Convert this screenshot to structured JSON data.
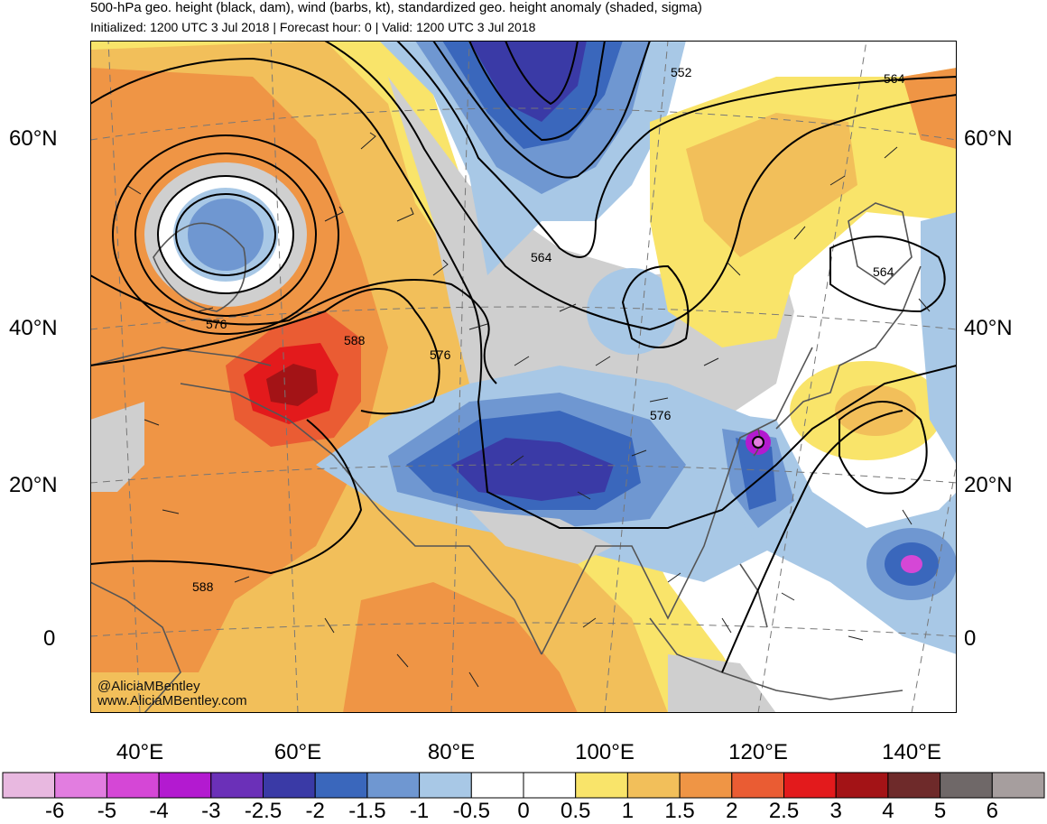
{
  "title": "500-hPa geo. height (black, dam), wind (barbs, kt), standardized geo. height anomaly (shaded, sigma)",
  "subtitle": "Initialized: 1200 UTC 3 Jul 2018 | Forecast hour: 0 | Valid: 1200 UTC 3 Jul 2018",
  "lat_labels": [
    "60°N",
    "40°N",
    "20°N",
    "0"
  ],
  "lon_labels": [
    "40°E",
    "60°E",
    "80°E",
    "100°E",
    "120°E",
    "140°E"
  ],
  "contour_labels": [
    "552",
    "564",
    "564",
    "564",
    "576",
    "576",
    "576",
    "588",
    "588"
  ],
  "credit": {
    "handle": "@AliciaMBentley",
    "url": "www.AliciaMBentley.com"
  },
  "colorbar": {
    "labels": [
      "-6",
      "-5",
      "-4",
      "-3",
      "-2.5",
      "-2",
      "-1.5",
      "-1",
      "-0.5",
      "0",
      "0.5",
      "1",
      "1.5",
      "2",
      "2.5",
      "3",
      "4",
      "5",
      "6"
    ],
    "colors": [
      "#e8b8e0",
      "#e27de0",
      "#d547d6",
      "#b31ad0",
      "#6b30b8",
      "#3a3aa6",
      "#3a67bc",
      "#6f97d1",
      "#a8c8e6",
      "#ffffff",
      "#ffffff",
      "#f9e46a",
      "#f2bf5a",
      "#ef9545",
      "#ea5c33",
      "#e31a1c",
      "#a31316",
      "#6e2a2a",
      "#6f6868",
      "#a69e9e"
    ]
  }
}
